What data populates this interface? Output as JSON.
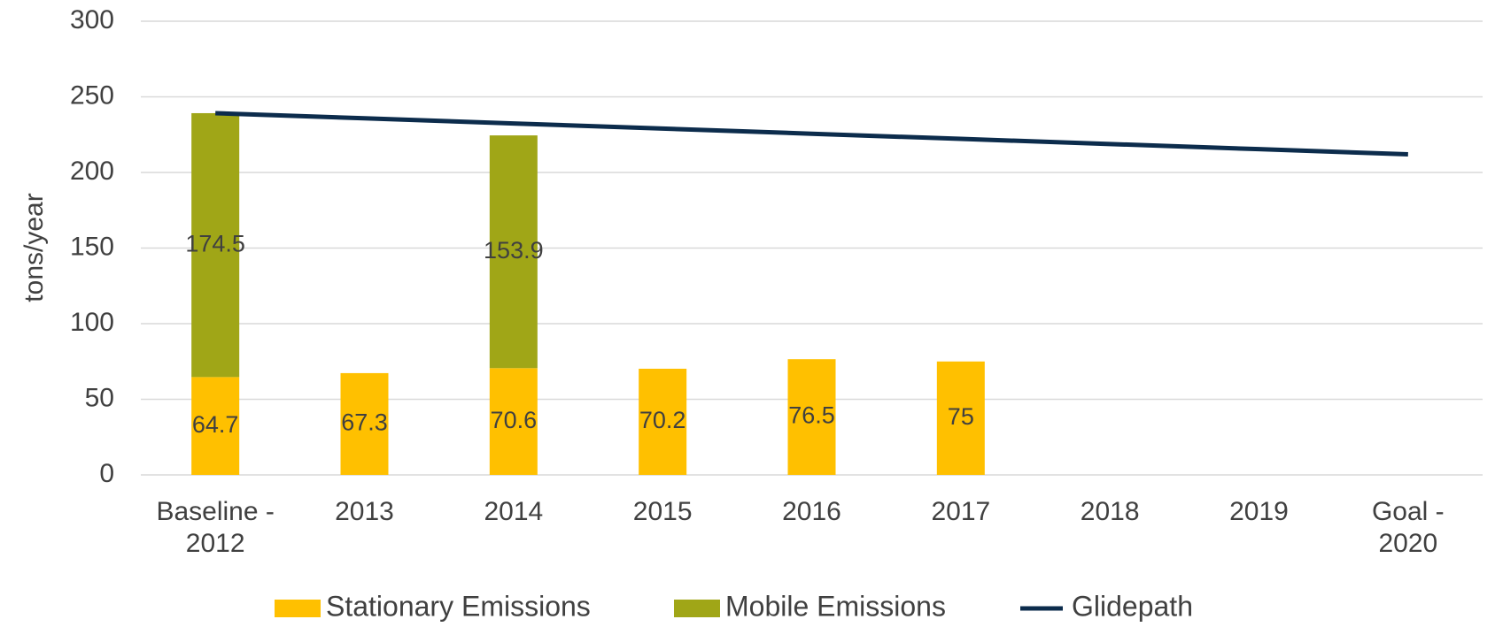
{
  "chart_data": {
    "type": "bar",
    "stacked": true,
    "y_label": "tons/year",
    "categories": [
      "Baseline - 2012",
      "2013",
      "2014",
      "2015",
      "2016",
      "2017",
      "2018",
      "2019",
      "Goal - 2020"
    ],
    "series": [
      {
        "name": "Stationary Emissions",
        "type": "bar",
        "color": "#FFC000",
        "values": [
          64.7,
          67.3,
          70.6,
          70.2,
          76.5,
          75,
          null,
          null,
          null
        ]
      },
      {
        "name": "Mobile Emissions",
        "type": "bar",
        "color": "#A0A617",
        "values": [
          174.5,
          null,
          153.9,
          null,
          null,
          null,
          null,
          null,
          null
        ]
      },
      {
        "name": "Glidepath",
        "type": "line",
        "color": "#0C2C4C",
        "values": [
          239.2,
          235.8,
          232.4,
          229,
          225.6,
          222.2,
          218.8,
          215.4,
          212
        ]
      }
    ],
    "ylim": [
      0,
      300
    ],
    "yticks": [
      0,
      50,
      100,
      150,
      200,
      250,
      300
    ],
    "grid": true,
    "legend": "bottom"
  }
}
